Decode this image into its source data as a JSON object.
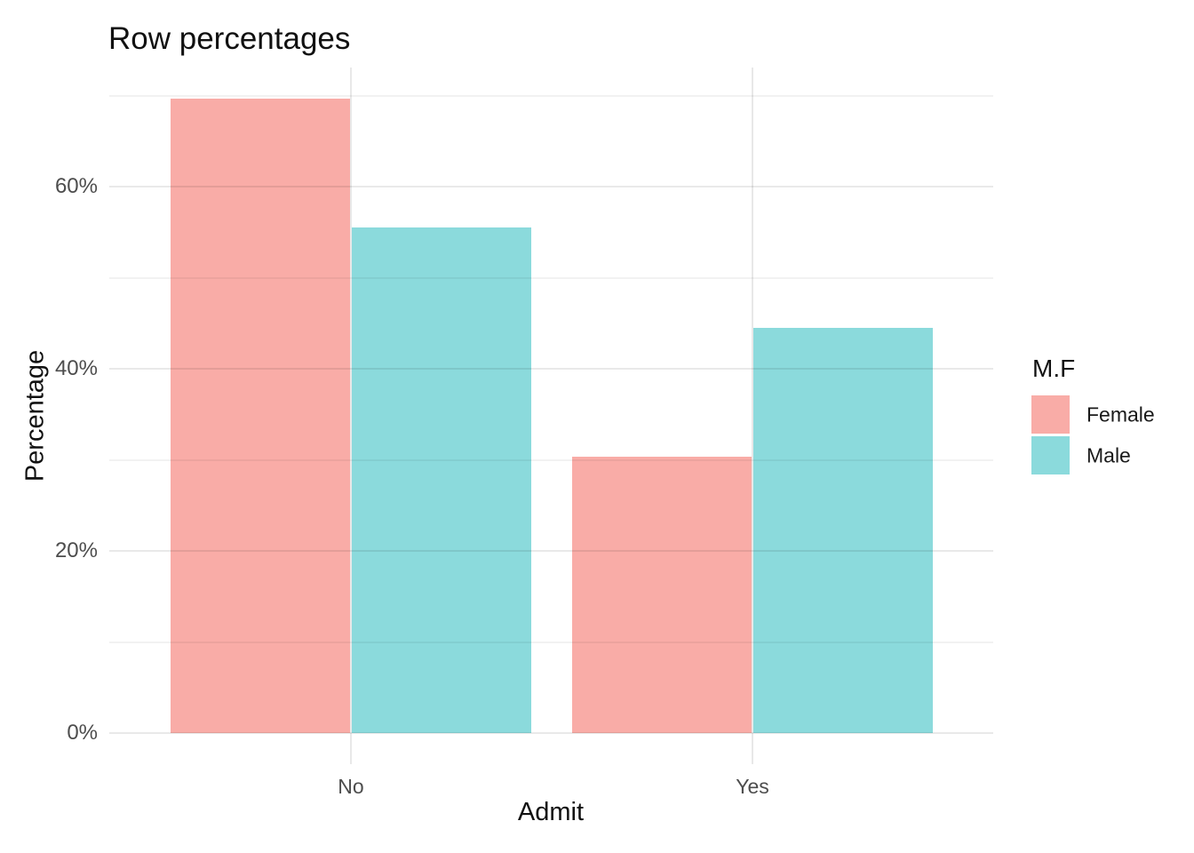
{
  "title": "Row percentages",
  "x_axis": {
    "title": "Admit",
    "tick_labels": [
      "No",
      "Yes"
    ]
  },
  "y_axis": {
    "title": "Percentage",
    "tick_labels": [
      "0%",
      "20%",
      "40%",
      "60%"
    ],
    "tick_values": [
      0,
      20,
      40,
      60
    ]
  },
  "legend": {
    "title": "M.F",
    "position": "right",
    "items": [
      {
        "label": "Female",
        "color": "#F9ACA7"
      },
      {
        "label": "Male",
        "color": "#8BDADC"
      }
    ]
  },
  "colors": {
    "female_bar": "#F9ACA7",
    "male_bar": "#8BDADC",
    "major_gridline": "#E8E8E8",
    "minor_gridline": "#F1F1F1",
    "tick_text": "#4D4D4D",
    "title_text": "#111111",
    "background": "#FFFFFF"
  },
  "chart_data": {
    "type": "bar",
    "grouping": "dodge",
    "title": "Row percentages",
    "xlabel": "Admit",
    "ylabel": "Percentage",
    "categories": [
      "No",
      "Yes"
    ],
    "series": [
      {
        "name": "Female",
        "color": "#F9ACA7",
        "values": [
          69.65,
          30.35
        ]
      },
      {
        "name": "Male",
        "color": "#8BDADC",
        "values": [
          55.48,
          44.52
        ]
      }
    ],
    "legend_title": "M.F",
    "legend_position": "right",
    "y_tick_labels": [
      "0%",
      "20%",
      "40%",
      "60%"
    ],
    "y_tick_values": [
      0,
      20,
      40,
      60
    ],
    "y_major_grid_pct": [
      0,
      20,
      40,
      60
    ],
    "y_minor_grid_pct": [
      10,
      30,
      50,
      70
    ],
    "ylim": [
      0,
      73
    ],
    "grid": true
  }
}
